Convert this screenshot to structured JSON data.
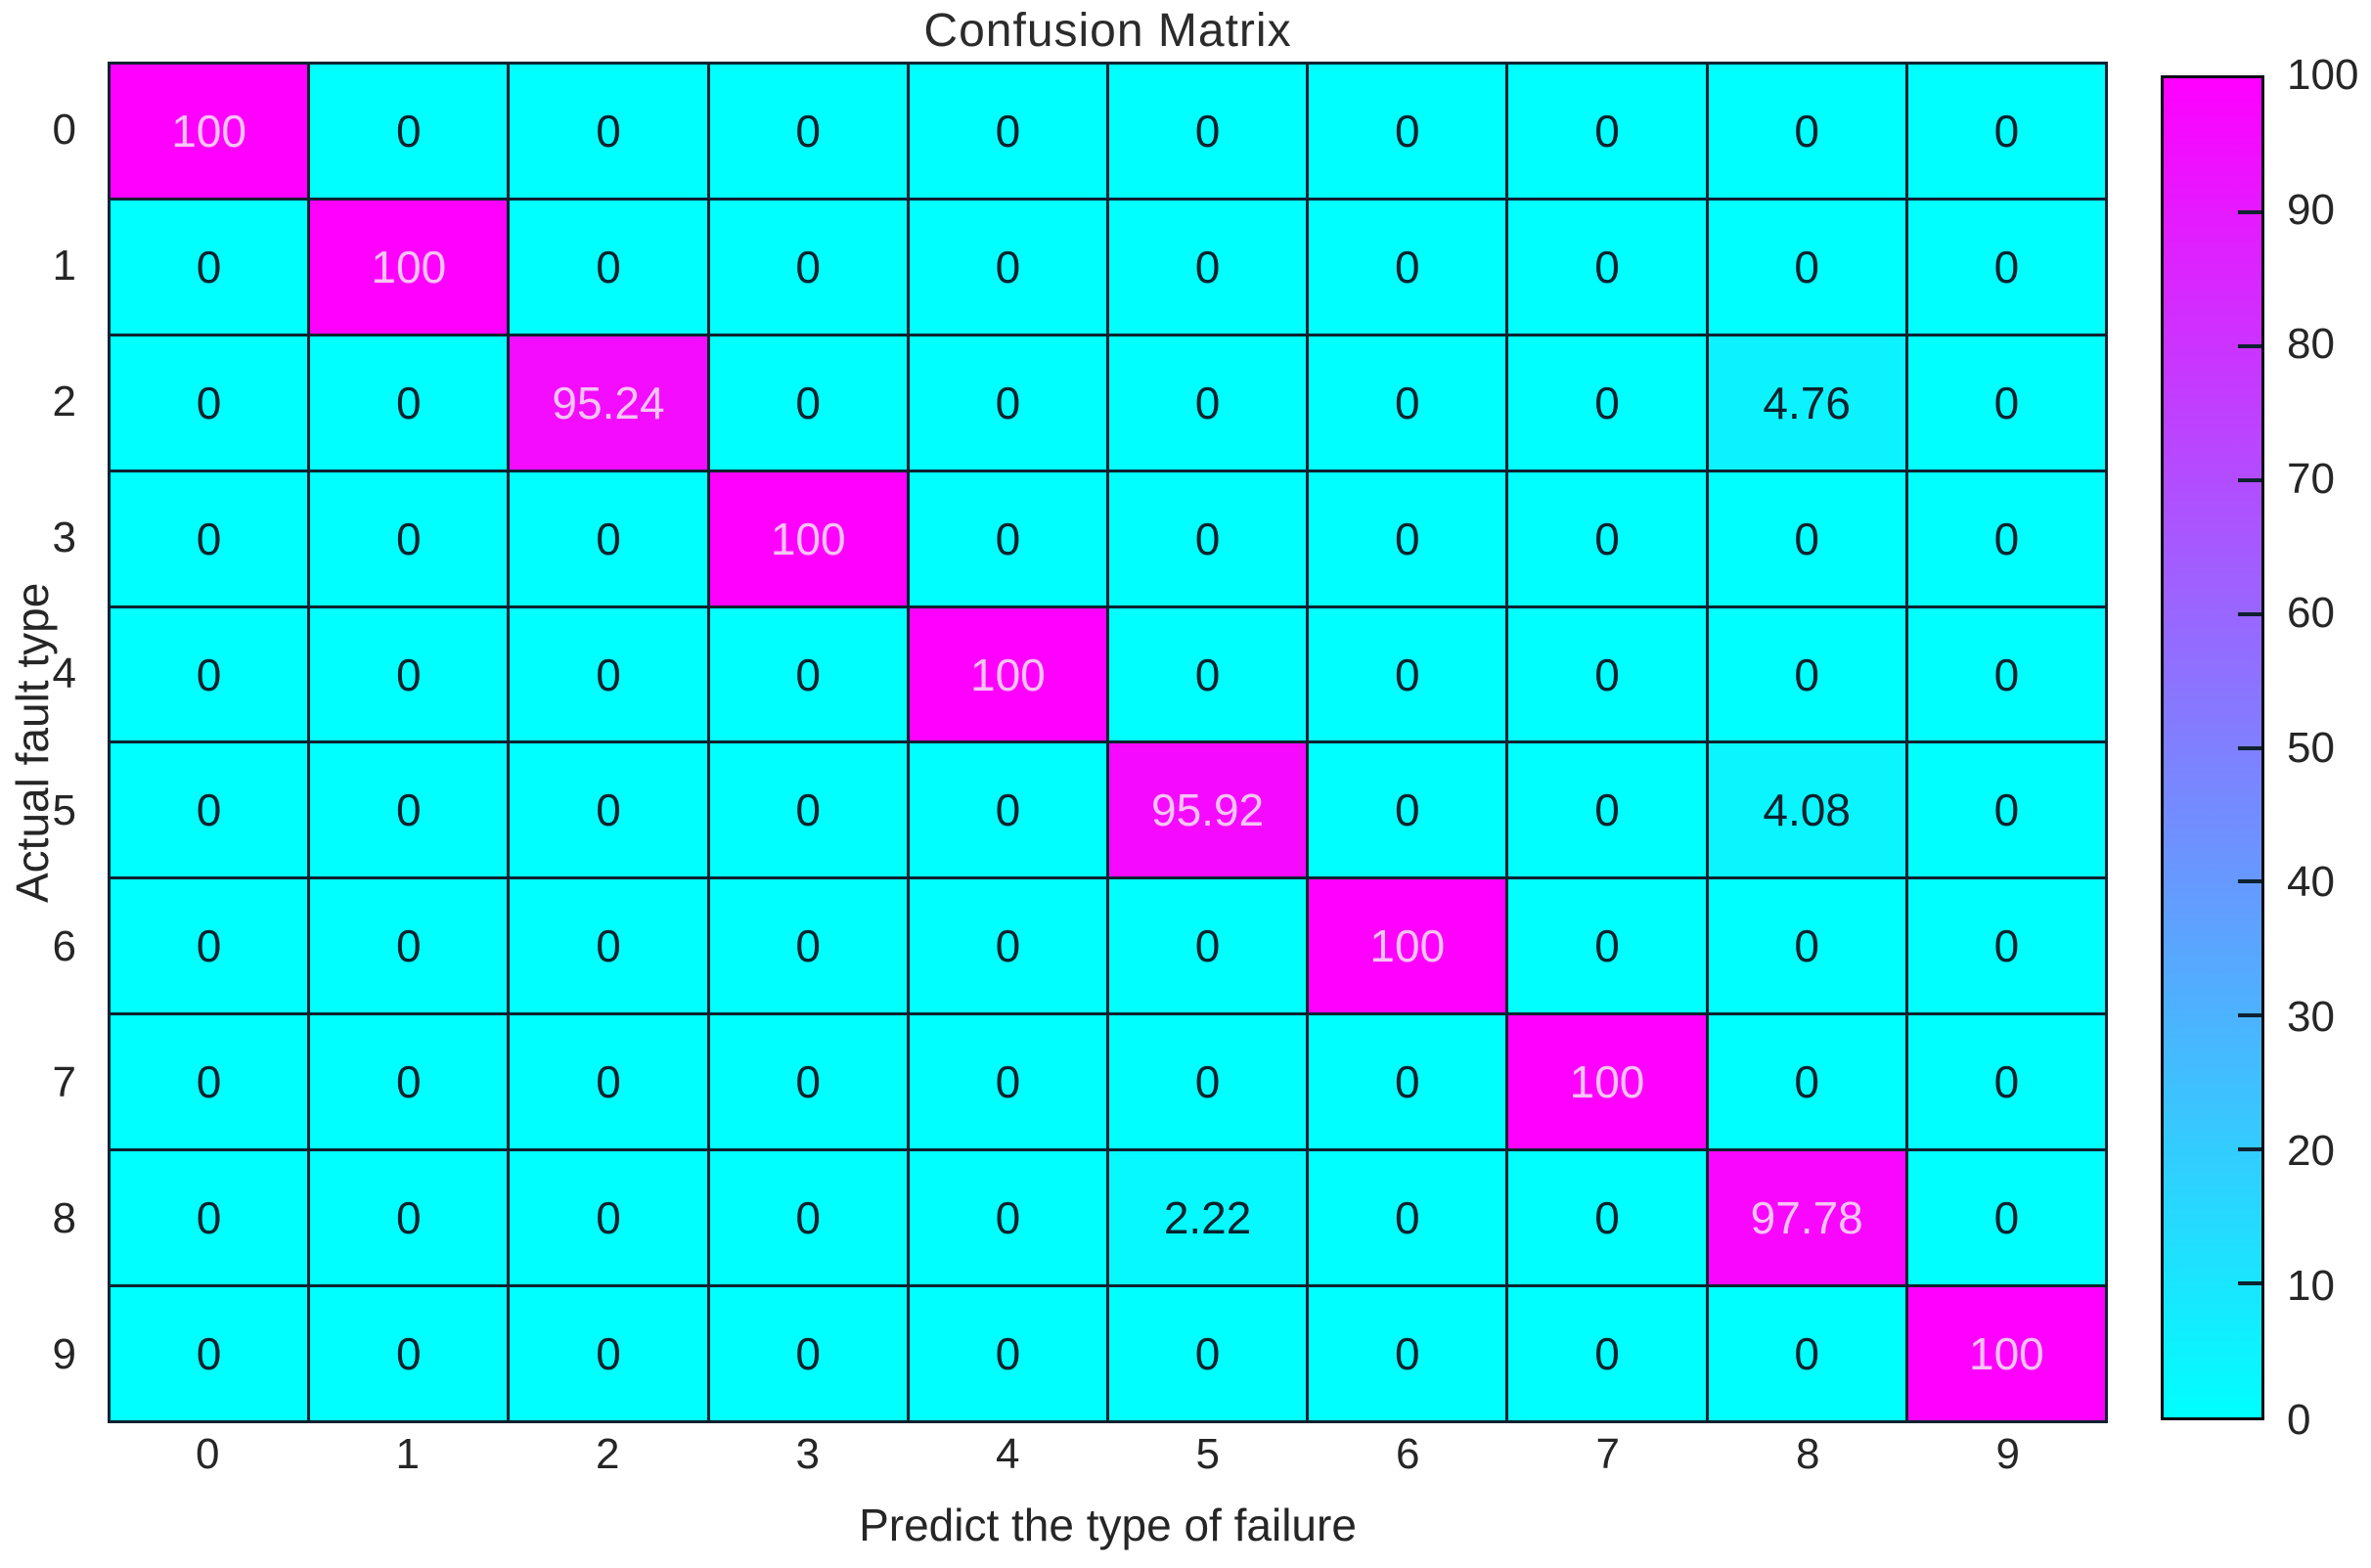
{
  "figure": {
    "title": "Confusion Matrix",
    "xlabel": "Predict the type of failure",
    "ylabel": "Actual fault type"
  },
  "chart_data": {
    "type": "heatmap",
    "title": "Confusion Matrix",
    "xlabel": "Predict the type of failure",
    "ylabel": "Actual fault type",
    "x_categories": [
      "0",
      "1",
      "2",
      "3",
      "4",
      "5",
      "6",
      "7",
      "8",
      "9"
    ],
    "y_categories": [
      "0",
      "1",
      "2",
      "3",
      "4",
      "5",
      "6",
      "7",
      "8",
      "9"
    ],
    "matrix": [
      [
        100,
        0,
        0,
        0,
        0,
        0,
        0,
        0,
        0,
        0
      ],
      [
        0,
        100,
        0,
        0,
        0,
        0,
        0,
        0,
        0,
        0
      ],
      [
        0,
        0,
        95.24,
        0,
        0,
        0,
        0,
        0,
        4.76,
        0
      ],
      [
        0,
        0,
        0,
        100,
        0,
        0,
        0,
        0,
        0,
        0
      ],
      [
        0,
        0,
        0,
        0,
        100,
        0,
        0,
        0,
        0,
        0
      ],
      [
        0,
        0,
        0,
        0,
        0,
        95.92,
        0,
        0,
        4.08,
        0
      ],
      [
        0,
        0,
        0,
        0,
        0,
        0,
        100,
        0,
        0,
        0
      ],
      [
        0,
        0,
        0,
        0,
        0,
        0,
        0,
        100,
        0,
        0
      ],
      [
        0,
        0,
        0,
        0,
        0,
        2.22,
        0,
        0,
        97.78,
        0
      ],
      [
        0,
        0,
        0,
        0,
        0,
        0,
        0,
        0,
        0,
        100
      ]
    ],
    "value_range": [
      0,
      100
    ],
    "colormap": {
      "name": "cool",
      "low_color": "#00FFFF",
      "high_color": "#FF00FF"
    },
    "colorbar": {
      "min": 0,
      "max": 100,
      "ticks": [
        0,
        10,
        20,
        30,
        40,
        50,
        60,
        70,
        80,
        90,
        100
      ],
      "position": "right"
    },
    "grid": true
  },
  "colors": {
    "grid_line": "#0E2230",
    "cell_text_dark": "#09222C",
    "cell_text_light": "#F6C4F6",
    "axis_text": "#262626",
    "background": "#FFFFFF"
  }
}
